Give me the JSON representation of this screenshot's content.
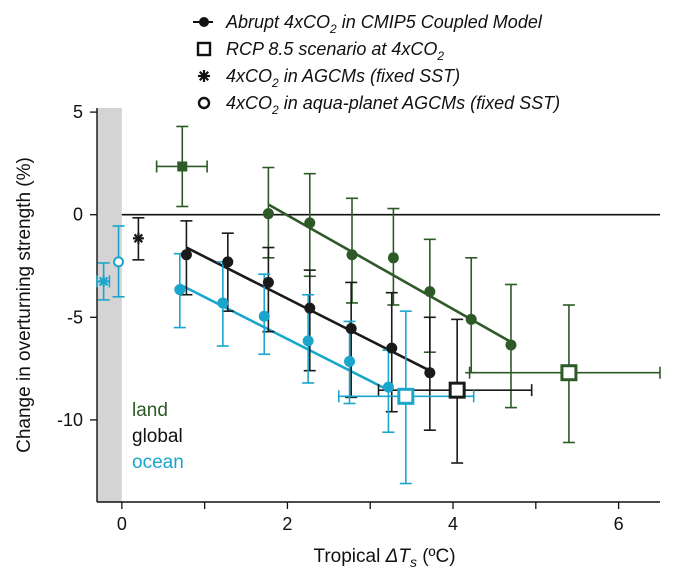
{
  "chart_data": {
    "type": "scatter",
    "title": "",
    "xlabel": {
      "main": "Tropical ",
      "symbol": "ΔT",
      "sub": "s",
      "unit": " (ºC)"
    },
    "ylabel": "Change in overturning strength (%)",
    "xlim": [
      -0.3,
      6.5
    ],
    "ylim": [
      -14,
      5.2
    ],
    "xticks": [
      0,
      2,
      4,
      6
    ],
    "yticks": [
      5,
      0,
      -5,
      -10
    ],
    "x_minor_ticks": [
      1,
      3,
      5
    ],
    "legend": [
      {
        "marker": "filled-circle-line",
        "parts": [
          {
            "t": "Abrupt 4xCO"
          },
          {
            "t": "2",
            "sub": true
          },
          {
            "t": " in CMIP5 Coupled Model"
          }
        ]
      },
      {
        "marker": "open-square",
        "parts": [
          {
            "t": "RCP 8.5 scenario at 4xCO"
          },
          {
            "t": "2",
            "sub": true
          }
        ]
      },
      {
        "marker": "asterisk",
        "parts": [
          {
            "t": "4xCO"
          },
          {
            "t": "2",
            "sub": true
          },
          {
            "t": "  in AGCMs (fixed SST)"
          }
        ]
      },
      {
        "marker": "open-circle",
        "parts": [
          {
            "t": "4xCO"
          },
          {
            "t": "2",
            "sub": true
          },
          {
            "t": "  in aqua-planet AGCMs (fixed SST)"
          }
        ]
      }
    ],
    "region_labels": [
      {
        "text": "land",
        "color": "#2d5a27"
      },
      {
        "text": "global",
        "color": "#111111"
      },
      {
        "text": "ocean",
        "color": "#1aa6cc"
      }
    ],
    "colors": {
      "land": "#2d5a27",
      "global": "#1a1a1a",
      "ocean": "#1aa6cc",
      "shade": "#d4d4d4"
    },
    "shaded_region": [
      -0.3,
      0
    ],
    "series": [
      {
        "name": "land",
        "color": "#2d5a27",
        "points": [
          {
            "x": 1.77,
            "y": 0.05,
            "ylo": -2.1,
            "yhi": 2.3
          },
          {
            "x": 2.27,
            "y": -0.4,
            "ylo": -3.0,
            "yhi": 2.0
          },
          {
            "x": 2.78,
            "y": -1.95,
            "ylo": -4.3,
            "yhi": 0.8
          },
          {
            "x": 3.28,
            "y": -2.1,
            "ylo": -4.4,
            "yhi": 0.3
          },
          {
            "x": 3.72,
            "y": -3.75,
            "ylo": -6.7,
            "yhi": -1.2
          },
          {
            "x": 4.22,
            "y": -5.1,
            "ylo": -7.7,
            "yhi": -2.1
          },
          {
            "x": 4.7,
            "y": -6.35,
            "ylo": -9.4,
            "yhi": -3.4
          }
        ],
        "fit": {
          "x1": 1.77,
          "y1": 0.5,
          "x2": 4.7,
          "y2": -6.2
        },
        "extra": {
          "x": 0.73,
          "y": 2.35,
          "ylo": 0.4,
          "yhi": 4.3,
          "xlo": 0.42,
          "xhi": 1.03,
          "marker": "asterisk"
        },
        "rcp": {
          "x": 5.4,
          "y": -7.7,
          "ylo": -11.1,
          "yhi": -4.4,
          "xlo": 4.2,
          "xhi": 6.5
        }
      },
      {
        "name": "global",
        "color": "#1a1a1a",
        "points": [
          {
            "x": 0.78,
            "y": -1.95,
            "ylo": -3.9,
            "yhi": -0.3
          },
          {
            "x": 1.28,
            "y": -2.3,
            "ylo": -4.7,
            "yhi": -0.9
          },
          {
            "x": 1.77,
            "y": -3.3,
            "ylo": -5.7,
            "yhi": -1.6
          },
          {
            "x": 2.27,
            "y": -4.55,
            "ylo": -7.6,
            "yhi": -2.7
          },
          {
            "x": 2.77,
            "y": -5.55,
            "ylo": -8.9,
            "yhi": -3.3
          },
          {
            "x": 3.26,
            "y": -6.5,
            "ylo": -9.6,
            "yhi": -3.8
          },
          {
            "x": 3.72,
            "y": -7.7,
            "ylo": -10.5,
            "yhi": -5.0
          }
        ],
        "fit": {
          "x1": 0.78,
          "y1": -1.6,
          "x2": 3.72,
          "y2": -7.6
        },
        "extra": {
          "x": 0.2,
          "y": -1.15,
          "ylo": -2.2,
          "yhi": -0.15,
          "marker": "asterisk"
        },
        "rcp": {
          "x": 4.05,
          "y": -8.55,
          "ylo": -12.1,
          "yhi": -5.1,
          "xlo": 3.1,
          "xhi": 4.95
        }
      },
      {
        "name": "ocean",
        "color": "#1aa6cc",
        "points": [
          {
            "x": 0.7,
            "y": -3.65,
            "ylo": -5.5,
            "yhi": -1.9
          },
          {
            "x": 1.22,
            "y": -4.3,
            "ylo": -6.4,
            "yhi": -2.3
          },
          {
            "x": 1.72,
            "y": -4.95,
            "ylo": -6.8,
            "yhi": -2.9
          },
          {
            "x": 2.25,
            "y": -6.15,
            "ylo": -8.2,
            "yhi": -3.9
          },
          {
            "x": 2.75,
            "y": -7.15,
            "ylo": -9.2,
            "yhi": -5.2
          },
          {
            "x": 3.22,
            "y": -8.4,
            "ylo": -10.6,
            "yhi": -6.6
          }
        ],
        "fit": {
          "x1": 0.7,
          "y1": -3.4,
          "x2": 3.22,
          "y2": -8.55
        },
        "extra_asterisk": {
          "x": -0.22,
          "y": -3.25,
          "ylo": -4.15,
          "yhi": -2.35,
          "xlo": -0.3,
          "xhi": -0.15
        },
        "extra_circle": {
          "x": -0.04,
          "y": -2.3,
          "ylo": -4.0,
          "yhi": -0.55
        },
        "rcp": {
          "x": 3.43,
          "y": -8.85,
          "ylo": -13.1,
          "yhi": -4.7,
          "xlo": 2.62,
          "xhi": 4.25
        }
      }
    ]
  }
}
